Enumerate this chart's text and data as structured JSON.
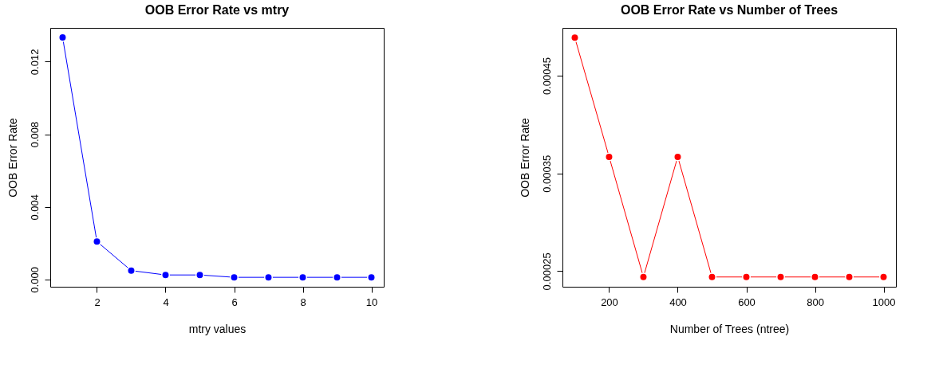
{
  "chart_data": [
    {
      "type": "line",
      "title": "OOB Error Rate vs mtry",
      "xlabel": "mtry values",
      "ylabel": "OOB Error Rate",
      "x": [
        1,
        2,
        3,
        4,
        5,
        6,
        7,
        8,
        9,
        10
      ],
      "series": [
        {
          "color": "#0000ff",
          "values": [
            0.01333,
            0.00209,
            0.00049,
            0.00025,
            0.00025,
            0.00012,
            0.00012,
            0.00012,
            0.00012,
            0.00012
          ]
        }
      ],
      "xlim": [
        0.64,
        10.36
      ],
      "xticks": [
        2,
        4,
        6,
        8,
        10
      ],
      "ylim": [
        -0.0004,
        0.01386
      ],
      "yticks": [
        {
          "value": 0,
          "label": "0.000"
        },
        0.004,
        0.008,
        0.012
      ],
      "marker": "circle",
      "grid": false
    },
    {
      "type": "line",
      "title": "OOB Error Rate vs Number of Trees",
      "xlabel": "Number of Trees (ntree)",
      "ylabel": "OOB Error Rate",
      "x": [
        100,
        200,
        300,
        400,
        500,
        600,
        700,
        800,
        900,
        1000
      ],
      "series": [
        {
          "color": "#ff0000",
          "values": [
            0.000489,
            0.000367,
            0.000244,
            0.000367,
            0.000244,
            0.000244,
            0.000244,
            0.000244,
            0.000244,
            0.000244
          ]
        }
      ],
      "xlim": [
        64,
        1036
      ],
      "xticks": [
        200,
        400,
        600,
        800,
        1000
      ],
      "ylim": [
        0.000234,
        0.000499
      ],
      "yticks": [
        0.00025,
        0.00035,
        0.00045
      ],
      "marker": "circle",
      "grid": false
    }
  ]
}
